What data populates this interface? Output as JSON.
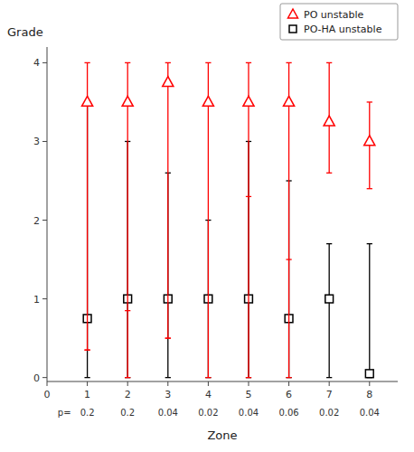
{
  "chart_data": {
    "type": "interval",
    "xlabel": "Zone",
    "ylabel": "Grade",
    "x": [
      1,
      2,
      3,
      4,
      5,
      6,
      7,
      8
    ],
    "series": [
      {
        "name": "PO unstable",
        "color": "#ff0000",
        "marker": "triangle",
        "values": [
          3.5,
          3.5,
          3.75,
          3.5,
          3.5,
          3.5,
          3.25,
          3.0
        ],
        "lower": [
          0.35,
          0.0,
          0.5,
          0.0,
          0.0,
          0.0,
          2.6,
          2.4
        ],
        "upper": [
          4.0,
          4.0,
          4.0,
          4.0,
          4.0,
          4.0,
          4.0,
          3.5
        ],
        "extra_ticks": [
          null,
          null,
          null,
          null,
          2.3,
          1.5,
          null,
          null
        ]
      },
      {
        "name": "PO-HA unstable",
        "color": "#000000",
        "marker": "square",
        "values": [
          0.75,
          1.0,
          1.0,
          1.0,
          1.0,
          0.75,
          1.0,
          0.05
        ],
        "lower": [
          0.0,
          0.0,
          0.0,
          0.0,
          0.0,
          0.0,
          0.0,
          0.0
        ],
        "upper": [
          3.5,
          3.0,
          2.6,
          2.0,
          3.0,
          2.5,
          1.7,
          1.7
        ],
        "extra_ticks": [
          0.35,
          0.85,
          0.5,
          null,
          null,
          null,
          null,
          null
        ]
      }
    ],
    "p_label": "p=",
    "p_values": [
      "0.2",
      "0.2",
      "0.04",
      "0.02",
      "0.04",
      "0.06",
      "0.02",
      "0.04"
    ],
    "xlim": [
      0,
      8.7
    ],
    "ylim": [
      -0.05,
      4.2
    ],
    "xticks": [
      0,
      1,
      2,
      3,
      4,
      5,
      6,
      7,
      8
    ],
    "yticks": [
      0,
      1,
      2,
      3,
      4
    ],
    "grid": false,
    "legend": "upper right"
  }
}
